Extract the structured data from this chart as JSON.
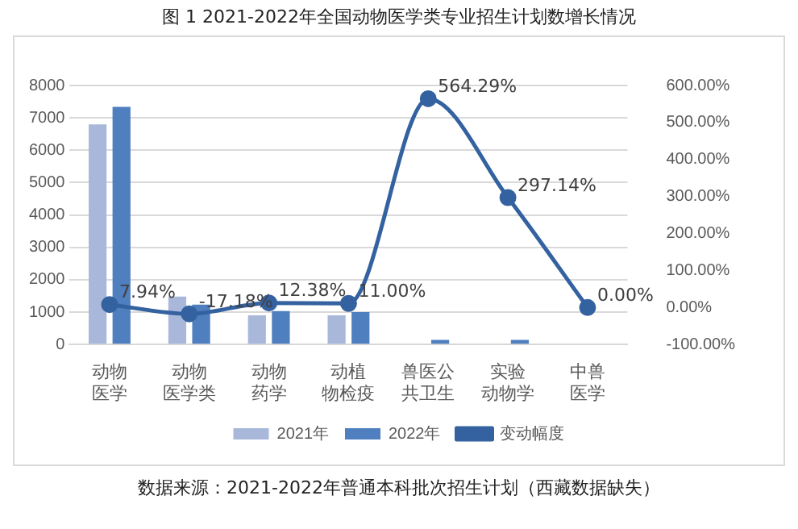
{
  "chart_data": {
    "type": "bar",
    "title": "图 1 2021-2022年全国动物医学类专业招生计划数增长情况",
    "categories": [
      "动物医学",
      "动物医学类",
      "动物药学",
      "动植物检疫",
      "兽医公共卫生",
      "实验动物学",
      "中兽医学"
    ],
    "series": [
      {
        "name": "2021年",
        "color": "#a9b8da",
        "values": [
          6800,
          1480,
          900,
          900,
          null,
          null,
          null
        ]
      },
      {
        "name": "2022年",
        "color": "#4f7fbf",
        "values": [
          7340,
          1230,
          1030,
          1000,
          140,
          140,
          null
        ]
      },
      {
        "name": "变动幅度",
        "type": "line",
        "axis": "y2",
        "color": "#3462a0",
        "values": [
          7.94,
          -17.18,
          12.38,
          11.0,
          564.29,
          297.14,
          0.0
        ],
        "value_labels": [
          "7.94%",
          "-17.18%",
          "12.38%",
          "11.00%",
          "564.29%",
          "297.14%",
          "0.00%"
        ]
      }
    ],
    "ylim": [
      0,
      8000
    ],
    "yticks": [
      0,
      1000,
      2000,
      3000,
      4000,
      5000,
      6000,
      7000,
      8000
    ],
    "y2lim": [
      -100,
      600
    ],
    "y2ticks": [
      {
        "value": -100,
        "label": "-100.00%"
      },
      {
        "value": 0,
        "label": "0.00%"
      },
      {
        "value": 100,
        "label": "100.00%"
      },
      {
        "value": 200,
        "label": "200.00%"
      },
      {
        "value": 300,
        "label": "300.00%"
      },
      {
        "value": 400,
        "label": "400.00%"
      },
      {
        "value": 500,
        "label": "500.00%"
      },
      {
        "value": 600,
        "label": "600.00%"
      }
    ],
    "grid": "y",
    "legend": "bottom",
    "marker": "circle",
    "line_style": "solid",
    "annotations": [
      "数据来源：2021-2022年普通本科批次招生计划（西藏数据缺失）"
    ]
  }
}
